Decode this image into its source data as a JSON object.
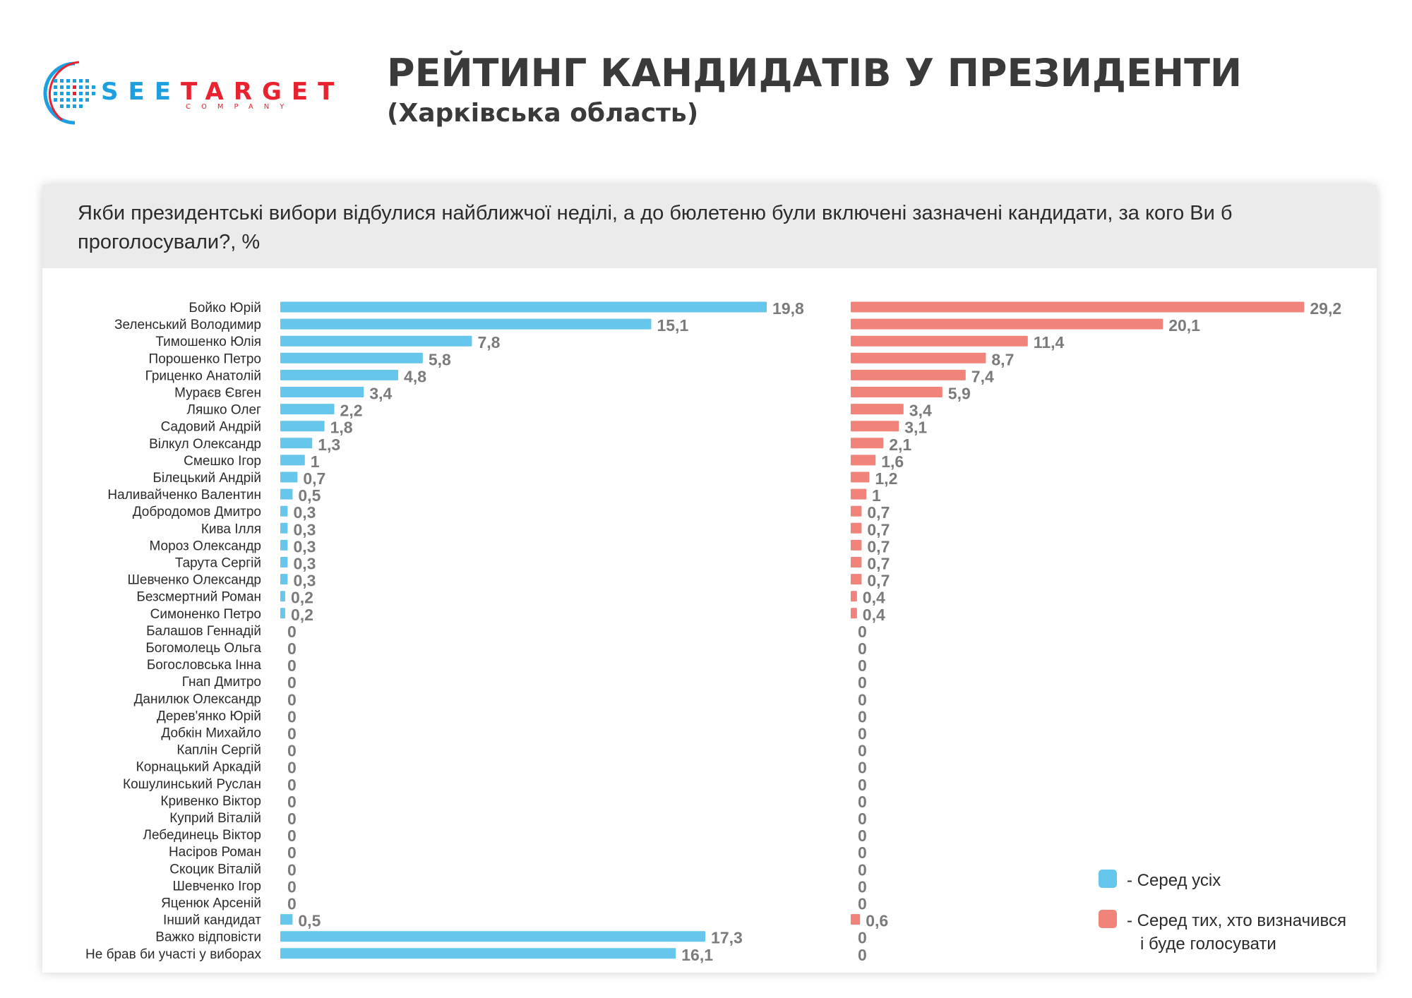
{
  "header": {
    "logo_brand_a": "SEE",
    "logo_brand_b": "TARGET",
    "logo_sub": "COMPANY",
    "title": "РЕЙТИНГ КАНДИДАТІВ У ПРЕЗИДЕНТИ",
    "subtitle": "(Харківська область)"
  },
  "colors": {
    "series_all": "#67c6ec",
    "series_decided": "#f0837a",
    "logo_blue": "#1d9fe0",
    "logo_red": "#e8222e"
  },
  "chart_data": {
    "type": "bar",
    "orientation": "horizontal",
    "title": "Якби президентські вибори відбулися найближчої неділі, а до бюлетеню були включені зазначені кандидати, за кого Ви б проголосували?, %",
    "categories": [
      "Бойко Юрій",
      "Зеленський Володимир",
      "Тимошенко Юлія",
      "Порошенко Петро",
      "Гриценко Анатолій",
      "Мураєв Євген",
      "Ляшко Олег",
      "Садовий Андрій",
      "Вілкул Олександр",
      "Смешко Ігор",
      "Білецький Андрій",
      "Наливайченко Валентин",
      "Добродомов Дмитро",
      "Кива Ілля",
      "Мороз Олександр",
      "Тарута Сергій",
      "Шевченко Олександр",
      "Безсмертний Роман",
      "Симоненко Петро",
      "Балашов Геннадій",
      "Богомолець Ольга",
      "Богословська Інна",
      "Гнап Дмитро",
      "Данилюк Олександр",
      "Дерев'янко Юрій",
      "Добкін Михайло",
      "Каплін Сергій",
      "Корнацький Аркадій",
      "Кошулинський Руслан",
      "Кривенко Віктор",
      "Куприй Віталій",
      "Лебединець Віктор",
      "Насіров Роман",
      "Скоцик Віталій",
      "Шевченко Ігор",
      "Яценюк Арсеній",
      "Інший кандидат",
      "Важко відповісти",
      "Не брав би участі у виборах"
    ],
    "series": [
      {
        "name": "- Серед усіх",
        "values": [
          19.8,
          15.1,
          7.8,
          5.8,
          4.8,
          3.4,
          2.2,
          1.8,
          1.3,
          1,
          0.7,
          0.5,
          0.3,
          0.3,
          0.3,
          0.3,
          0.3,
          0.2,
          0.2,
          0,
          0,
          0,
          0,
          0,
          0,
          0,
          0,
          0,
          0,
          0,
          0,
          0,
          0,
          0,
          0,
          0,
          0.5,
          17.3,
          16.1
        ]
      },
      {
        "name": "- Серед тих, хто визначився і буде голосувати",
        "values": [
          29.2,
          20.1,
          11.4,
          8.7,
          7.4,
          5.9,
          3.4,
          3.1,
          2.1,
          1.6,
          1.2,
          1,
          0.7,
          0.7,
          0.7,
          0.7,
          0.7,
          0.4,
          0.4,
          0,
          0,
          0,
          0,
          0,
          0,
          0,
          0,
          0,
          0,
          0,
          0,
          0,
          0,
          0,
          0,
          0,
          0.6,
          0,
          0
        ]
      }
    ],
    "value_format": "decimal-comma",
    "legend": {
      "position": "bottom-right",
      "all_label": "- Серед усіх",
      "decided_label_line1": "- Серед тих, хто визначився",
      "decided_label_line2": "і буде голосувати"
    }
  }
}
